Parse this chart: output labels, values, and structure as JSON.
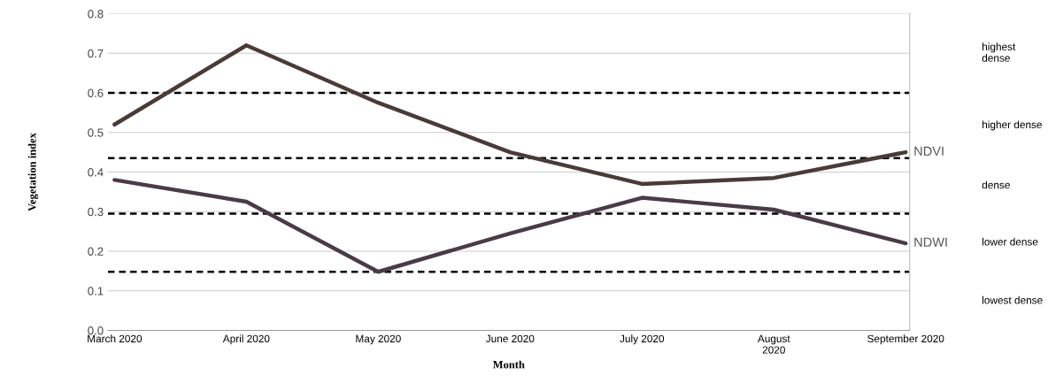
{
  "chart_data": {
    "type": "line",
    "xlabel": "Month",
    "ylabel": "Vegetation index",
    "categories": [
      "March 2020",
      "April 2020",
      "May 2020",
      "June 2020",
      "July 2020",
      "August\n2020",
      "September 2020"
    ],
    "series": [
      {
        "name": "NDVI",
        "color": "#4a3b37",
        "values": [
          0.52,
          0.72,
          0.575,
          0.45,
          0.37,
          0.385,
          0.45
        ]
      },
      {
        "name": "NDWI",
        "color": "#4a3b47",
        "values": [
          0.38,
          0.325,
          0.148,
          0.245,
          0.335,
          0.305,
          0.22
        ]
      }
    ],
    "ylim": [
      0,
      0.8
    ],
    "yticks": [
      {
        "value": 0,
        "label": "0.0"
      },
      0.1,
      0.2,
      0.3,
      0.4,
      0.5,
      0.6,
      0.7,
      0.8
    ],
    "grid": "y",
    "line_style": "solid",
    "ref_lines": [
      {
        "axis": "y",
        "value": 0.6,
        "color": "#000000",
        "line_style": "dashed"
      },
      {
        "axis": "y",
        "value": 0.435,
        "color": "#000000",
        "line_style": "dashed"
      },
      {
        "axis": "y",
        "value": 0.295,
        "color": "#000000",
        "line_style": "dashed"
      },
      {
        "axis": "y",
        "value": 0.148,
        "color": "#000000",
        "line_style": "dashed"
      }
    ],
    "annotations": [
      "highest\ndense",
      "higher dense",
      "dense",
      "lower dense",
      "lowest dense"
    ]
  }
}
